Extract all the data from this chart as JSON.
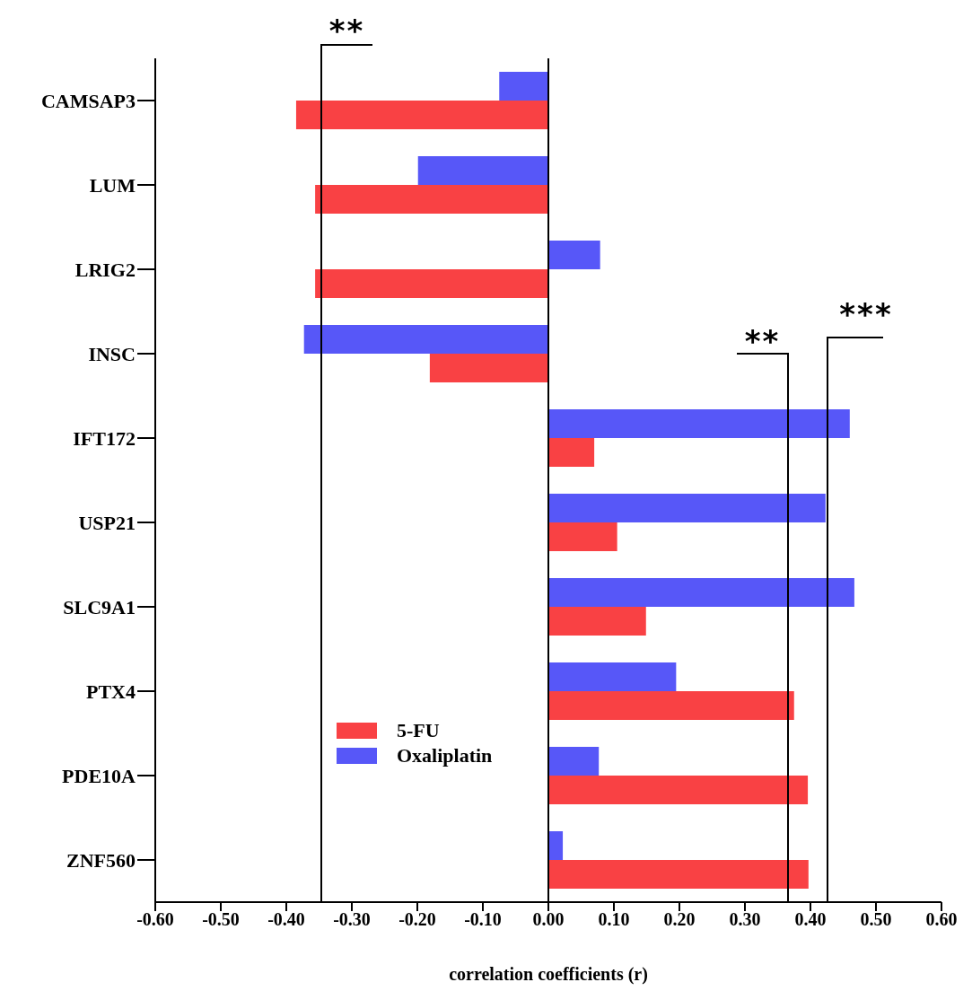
{
  "chart_data": {
    "type": "bar",
    "orientation": "horizontal",
    "xlabel": "correlation coefficients (r)",
    "categories": [
      "CAMSAP3",
      "LUM",
      "LRIG2",
      "INSC",
      "IFT172",
      "USP21",
      "SLC9A1",
      "PTX4",
      "PDE10A",
      "ZNF560"
    ],
    "series": [
      {
        "name": "5-FU",
        "color": "#f94144",
        "values": [
          -0.385,
          -0.356,
          -0.356,
          -0.181,
          0.07,
          0.105,
          0.149,
          0.375,
          0.396,
          0.397
        ]
      },
      {
        "name": "Oxaliplatin",
        "color": "#5757f8",
        "values": [
          -0.075,
          -0.199,
          0.079,
          -0.373,
          0.46,
          0.423,
          0.467,
          0.195,
          0.077,
          0.022
        ]
      }
    ],
    "xlim": [
      -0.6,
      0.6
    ],
    "xticks": [
      {
        "value": -0.6,
        "label": "-0.60"
      },
      {
        "value": -0.5,
        "label": "-0.50"
      },
      {
        "value": -0.4,
        "label": "-0.40"
      },
      {
        "value": -0.3,
        "label": "-0.30"
      },
      {
        "value": -0.2,
        "label": "-0.20"
      },
      {
        "value": -0.1,
        "label": "-0.10"
      },
      {
        "value": 0,
        "label": "0.00"
      },
      {
        "value": 0.1,
        "label": "0.10"
      },
      {
        "value": 0.2,
        "label": "0.20"
      },
      {
        "value": 0.3,
        "label": "0.30"
      },
      {
        "value": 0.4,
        "label": "0.40"
      },
      {
        "value": 0.5,
        "label": "0.50"
      },
      {
        "value": 0.6,
        "label": "0.60"
      }
    ],
    "ref_lines": [
      {
        "axis": "x",
        "value": 0,
        "color": "#000000"
      }
    ],
    "annotations": [
      "**",
      "**",
      "***"
    ],
    "legend": "bottom left",
    "grid": false
  }
}
